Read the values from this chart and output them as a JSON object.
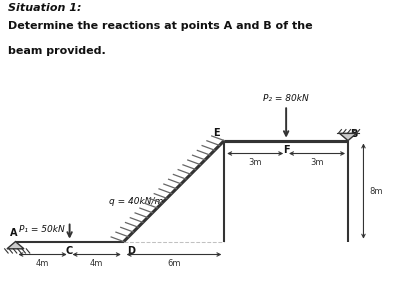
{
  "title_line1": "Situation 1:",
  "title_line2": "Determine the reactions at points A and B of the\nbeam provided.",
  "bg_color": "#ffffff",
  "text_color": "#111111",
  "beam_color": "#333333",
  "hatch_color": "#666666",
  "q_label": "q = 40kN/m",
  "P1_label": "P₁ = 50kN",
  "P2_label": "P₂ = 80kN",
  "dim_4m_1": "4m",
  "dim_4m_2": "4m",
  "dim_6m": "6m",
  "dim_3m_1": "3m",
  "dim_3m_2": "3m",
  "dim_8m": "8m",
  "label_A": "A",
  "label_B": "B",
  "label_C": "C",
  "label_D": "D",
  "label_E": "E",
  "label_F": "F"
}
